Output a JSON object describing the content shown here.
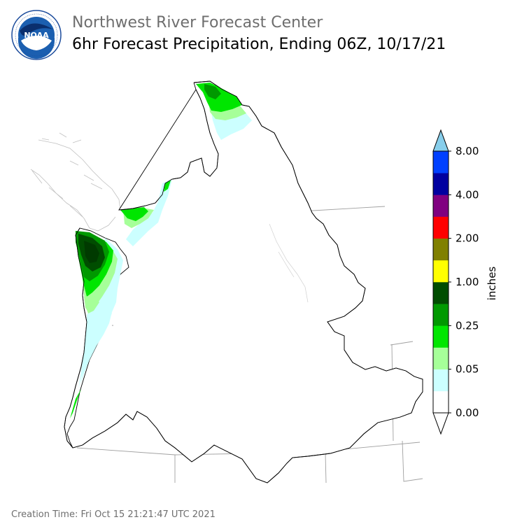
{
  "header": {
    "title": "Northwest River Forecast Center",
    "subtitle": "6hr Forecast Precipitation, Ending 06Z, 10/17/21"
  },
  "logo": {
    "text": "NOAA",
    "ring_text": "NATIONAL OCEANIC AND ATMOSPHERIC ADMINISTRATION · U.S. DEPARTMENT OF COMMERCE"
  },
  "colorbar": {
    "unit_label": "inches",
    "tick_labels": [
      "0.00",
      "0.05",
      "0.25",
      "1.00",
      "2.00",
      "4.00",
      "8.00"
    ],
    "bands": [
      {
        "color": "#ffffff"
      },
      {
        "color": "#ccffff"
      },
      {
        "color": "#a6ff99"
      },
      {
        "color": "#00e600"
      },
      {
        "color": "#009900"
      },
      {
        "color": "#004d00"
      },
      {
        "color": "#ffff00"
      },
      {
        "color": "#808000"
      },
      {
        "color": "#ff0000"
      },
      {
        "color": "#800080"
      },
      {
        "color": "#0000a0"
      },
      {
        "color": "#0040ff"
      }
    ],
    "over_color": "#87ceeb",
    "under_color": "#ffffff"
  },
  "footer": {
    "creation_time": "Creation Time: Fri Oct 15 21:21:47 UTC 2021"
  }
}
